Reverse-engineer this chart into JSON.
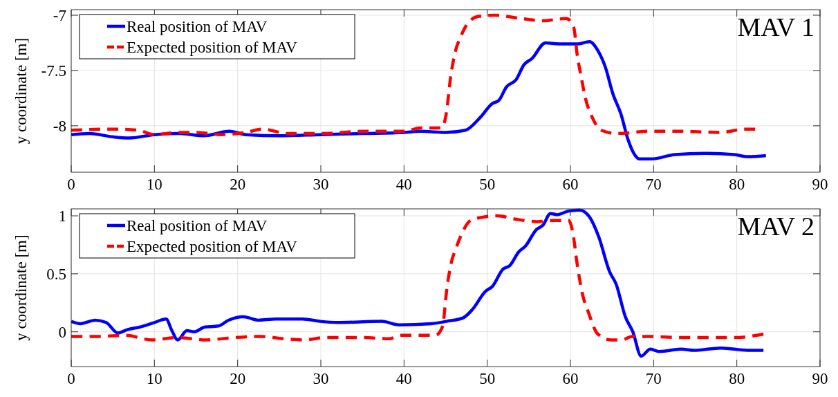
{
  "chart_data": [
    {
      "type": "line",
      "ylabel": "y coordinate [m]",
      "annotations": [
        "MAV 1"
      ],
      "xlim": [
        0,
        90
      ],
      "xticks": [
        0,
        10,
        20,
        30,
        40,
        50,
        60,
        70,
        80,
        90
      ],
      "ylim": [
        -8.42,
        -6.95
      ],
      "yticks": [
        -8,
        -7.5,
        -7
      ],
      "grid": true,
      "legend": "top left",
      "series": [
        {
          "name": "Real position of MAV",
          "color": "#0000ff",
          "line_style": "solid",
          "x": [
            0,
            2.2,
            5,
            7,
            10,
            13,
            16,
            19,
            21,
            25,
            30,
            35,
            40,
            42,
            45,
            47.4,
            49.1,
            50.6,
            51.4,
            52.3,
            53.5,
            54.4,
            55.4,
            57,
            58.6,
            60.8,
            62.3,
            63.3,
            64.2,
            65.1,
            66.1,
            66.9,
            67.8,
            68.3,
            69.7,
            72.6,
            76.5,
            79.7,
            81.3,
            83.5
          ],
          "values": [
            -8.08,
            -8.07,
            -8.1,
            -8.11,
            -8.08,
            -8.07,
            -8.09,
            -8.05,
            -8.08,
            -8.09,
            -8.08,
            -8.07,
            -8.06,
            -8.05,
            -8.06,
            -8.04,
            -7.93,
            -7.8,
            -7.77,
            -7.65,
            -7.58,
            -7.45,
            -7.39,
            -7.25,
            -7.26,
            -7.26,
            -7.24,
            -7.32,
            -7.47,
            -7.71,
            -7.9,
            -8.12,
            -8.27,
            -8.3,
            -8.3,
            -8.26,
            -8.25,
            -8.26,
            -8.28,
            -8.27
          ]
        },
        {
          "name": "Expected position of MAV",
          "color": "#ff0000",
          "line_style": "dashed",
          "x": [
            0,
            5,
            8,
            10,
            13,
            15,
            18,
            21,
            23,
            26,
            30,
            35,
            40,
            42,
            44.5,
            45.1,
            45.6,
            46.1,
            46.9,
            47.7,
            49,
            50.9,
            54.1,
            56.7,
            59.5,
            60.4,
            60.8,
            61.3,
            61.8,
            62.6,
            63.7,
            65.6,
            69.4,
            73.3,
            78.1,
            81,
            82.2
          ],
          "values": [
            -8.04,
            -8.03,
            -8.04,
            -8.08,
            -8.06,
            -8.06,
            -8.08,
            -8.06,
            -8.03,
            -8.07,
            -8.07,
            -8.05,
            -8.05,
            -8.02,
            -8.02,
            -7.88,
            -7.56,
            -7.35,
            -7.18,
            -7.07,
            -7.01,
            -7,
            -7.03,
            -7.05,
            -7.03,
            -7.11,
            -7.35,
            -7.56,
            -7.75,
            -7.92,
            -8.04,
            -8.07,
            -8.05,
            -8.05,
            -8.06,
            -8.03,
            -8.03
          ]
        }
      ]
    },
    {
      "type": "line",
      "ylabel": "y coordinate [m]",
      "annotations": [
        "MAV 2"
      ],
      "xlim": [
        0,
        90
      ],
      "xticks": [
        0,
        10,
        20,
        30,
        40,
        50,
        60,
        70,
        80,
        90
      ],
      "ylim": [
        -0.3,
        1.06
      ],
      "yticks": [
        0,
        0.5,
        1
      ],
      "grid": true,
      "legend": "top left",
      "series": [
        {
          "name": "Real position of MAV",
          "color": "#0000ff",
          "line_style": "solid",
          "x": [
            0,
            1.1,
            2.9,
            4.2,
            5.6,
            6.8,
            8.2,
            10,
            11.4,
            12.1,
            12.8,
            13.9,
            14.8,
            16,
            17.7,
            18.9,
            20.7,
            22.5,
            24.6,
            27.8,
            29.9,
            32,
            37.3,
            39.4,
            43.3,
            45.1,
            47.1,
            48.2,
            49.8,
            50.6,
            51.9,
            52.7,
            53.8,
            54.6,
            55.9,
            56.7,
            57.6,
            58.4,
            59.7,
            61.1,
            62.3,
            63.4,
            64.7,
            65.5,
            66.6,
            67.5,
            68.5,
            69.6,
            70.7,
            73.3,
            74.9,
            78.1,
            81.3,
            83.2
          ],
          "values": [
            0.09,
            0.07,
            0.1,
            0.08,
            -0.01,
            0.02,
            0.04,
            0.08,
            0.11,
            0.01,
            -0.07,
            0.01,
            0,
            0.04,
            0.05,
            0.1,
            0.13,
            0.1,
            0.11,
            0.11,
            0.09,
            0.08,
            0.09,
            0.06,
            0.07,
            0.09,
            0.12,
            0.19,
            0.35,
            0.39,
            0.54,
            0.57,
            0.69,
            0.74,
            0.88,
            0.92,
            1.02,
            1.01,
            1.04,
            1.05,
            0.99,
            0.82,
            0.52,
            0.41,
            0.13,
            0,
            -0.21,
            -0.15,
            -0.17,
            -0.15,
            -0.16,
            -0.14,
            -0.16,
            -0.16
          ]
        },
        {
          "name": "Expected position of MAV",
          "color": "#ff0000",
          "line_style": "dashed",
          "x": [
            0,
            3.5,
            6.5,
            9.7,
            12.7,
            16.3,
            19.5,
            22.8,
            25.5,
            28.1,
            30.5,
            35,
            38.2,
            39.7,
            43.8,
            44.4,
            44.7,
            45.1,
            45.6,
            46.3,
            47.1,
            48,
            49.6,
            51.2,
            53.5,
            56,
            57.9,
            59.8,
            60.3,
            60.8,
            61.4,
            62.2,
            63.3,
            64.9,
            66.2,
            67.4,
            69.4,
            73.3,
            76.5,
            79.7,
            83.2
          ],
          "values": [
            -0.04,
            -0.04,
            -0.03,
            -0.07,
            -0.05,
            -0.07,
            -0.05,
            -0.04,
            -0.06,
            -0.07,
            -0.05,
            -0.05,
            -0.06,
            -0.03,
            -0.03,
            0.01,
            0.07,
            0.34,
            0.57,
            0.73,
            0.87,
            0.96,
            0.99,
            1,
            0.97,
            0.95,
            0.96,
            0.96,
            0.85,
            0.59,
            0.34,
            0.16,
            -0.02,
            -0.07,
            -0.07,
            -0.04,
            -0.04,
            -0.05,
            -0.05,
            -0.05,
            -0.02
          ]
        }
      ]
    }
  ]
}
